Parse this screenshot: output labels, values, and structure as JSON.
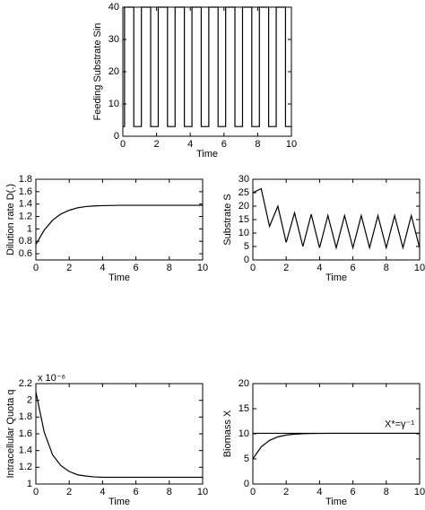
{
  "chart_data": [
    {
      "type": "line",
      "xlabel": "Time",
      "ylabel": "Feeding Substrate Sin",
      "xlim": [
        0,
        10
      ],
      "ylim": [
        0,
        40
      ],
      "xticks": [
        0,
        2,
        4,
        6,
        8,
        10
      ],
      "yticks": [
        0,
        10,
        20,
        30,
        40
      ],
      "x": [
        0,
        0.1,
        0.1,
        0.65,
        0.65,
        1.1,
        1.1,
        1.65,
        1.65,
        2.1,
        2.1,
        2.65,
        2.65,
        3.1,
        3.1,
        3.65,
        3.65,
        4.1,
        4.1,
        4.65,
        4.65,
        5.1,
        5.1,
        5.65,
        5.65,
        6.1,
        6.1,
        6.65,
        6.65,
        7.1,
        7.1,
        7.65,
        7.65,
        8.1,
        8.1,
        8.65,
        8.65,
        9.1,
        9.1,
        9.65,
        9.65,
        10
      ],
      "series": [
        {
          "color": "#000000",
          "values": [
            3,
            3,
            40,
            40,
            3,
            3,
            40,
            40,
            3,
            3,
            40,
            40,
            3,
            3,
            40,
            40,
            3,
            3,
            40,
            40,
            3,
            3,
            40,
            40,
            3,
            3,
            40,
            40,
            3,
            3,
            40,
            40,
            3,
            3,
            40,
            40,
            3,
            3,
            40,
            40,
            3,
            3
          ]
        }
      ]
    },
    {
      "type": "line",
      "xlabel": "Time",
      "ylabel": "Dilution rate D(.)",
      "xlim": [
        0,
        10
      ],
      "ylim": [
        0.5,
        1.8
      ],
      "xticks": [
        0,
        2,
        4,
        6,
        8,
        10
      ],
      "yticks": [
        0.6,
        0.8,
        1,
        1.2,
        1.4,
        1.6,
        1.8
      ],
      "x": [
        0,
        0.5,
        1,
        1.5,
        2,
        2.5,
        3,
        3.5,
        4,
        5,
        6,
        7,
        8,
        9,
        10
      ],
      "series": [
        {
          "color": "#000000",
          "values": [
            0.75,
            0.98,
            1.14,
            1.24,
            1.3,
            1.34,
            1.36,
            1.37,
            1.375,
            1.38,
            1.38,
            1.38,
            1.38,
            1.38,
            1.38
          ]
        }
      ]
    },
    {
      "type": "line",
      "xlabel": "Time",
      "ylabel": "Substrate S",
      "xlim": [
        0,
        10
      ],
      "ylim": [
        0,
        30
      ],
      "xticks": [
        0,
        2,
        4,
        6,
        8,
        10
      ],
      "yticks": [
        0,
        5,
        10,
        15,
        20,
        25,
        30
      ],
      "x": [
        0,
        0.5,
        1,
        1.5,
        2,
        2.5,
        3,
        3.5,
        4,
        4.5,
        5,
        5.5,
        6,
        6.5,
        7,
        7.5,
        8,
        8.5,
        9,
        9.5,
        10
      ],
      "series": [
        {
          "color": "#000000",
          "values": [
            25,
            26.5,
            12.5,
            20,
            6.5,
            17.5,
            5,
            17,
            4.5,
            16.5,
            4.5,
            16.5,
            4.5,
            16.5,
            4.5,
            16.5,
            4.5,
            16.5,
            4.5,
            16.5,
            4.5
          ]
        }
      ]
    },
    {
      "type": "line",
      "xlabel": "Time",
      "ylabel": "Intracellular Quota q",
      "exponent_label": "x 10⁻⁶",
      "xlim": [
        0,
        10
      ],
      "ylim": [
        1,
        2.2
      ],
      "xticks": [
        0,
        2,
        4,
        6,
        8,
        10
      ],
      "yticks": [
        1,
        1.2,
        1.4,
        1.6,
        1.8,
        2,
        2.2
      ],
      "x": [
        0,
        0.5,
        1,
        1.5,
        2,
        2.5,
        3,
        3.5,
        4,
        5,
        6,
        7,
        8,
        9,
        10
      ],
      "series": [
        {
          "color": "#000000",
          "values": [
            2.1,
            1.62,
            1.35,
            1.22,
            1.15,
            1.11,
            1.095,
            1.085,
            1.08,
            1.08,
            1.08,
            1.08,
            1.08,
            1.08,
            1.08
          ]
        }
      ]
    },
    {
      "type": "line",
      "xlabel": "Time",
      "ylabel": "Biomass X",
      "xlim": [
        0,
        10
      ],
      "ylim": [
        0,
        20
      ],
      "xticks": [
        0,
        2,
        4,
        6,
        8,
        10
      ],
      "yticks": [
        0,
        5,
        10,
        15,
        20
      ],
      "hline": {
        "value": 10.1,
        "label": "X*=γ⁻¹"
      },
      "x": [
        0,
        0.5,
        1,
        1.5,
        2,
        2.5,
        3,
        3.5,
        4,
        5,
        6,
        7,
        8,
        9,
        10
      ],
      "series": [
        {
          "color": "#000000",
          "values": [
            5,
            7.4,
            8.7,
            9.4,
            9.75,
            9.93,
            10.02,
            10.06,
            10.08,
            10.1,
            10.1,
            10.1,
            10.1,
            10.1,
            10.1
          ]
        }
      ]
    }
  ]
}
